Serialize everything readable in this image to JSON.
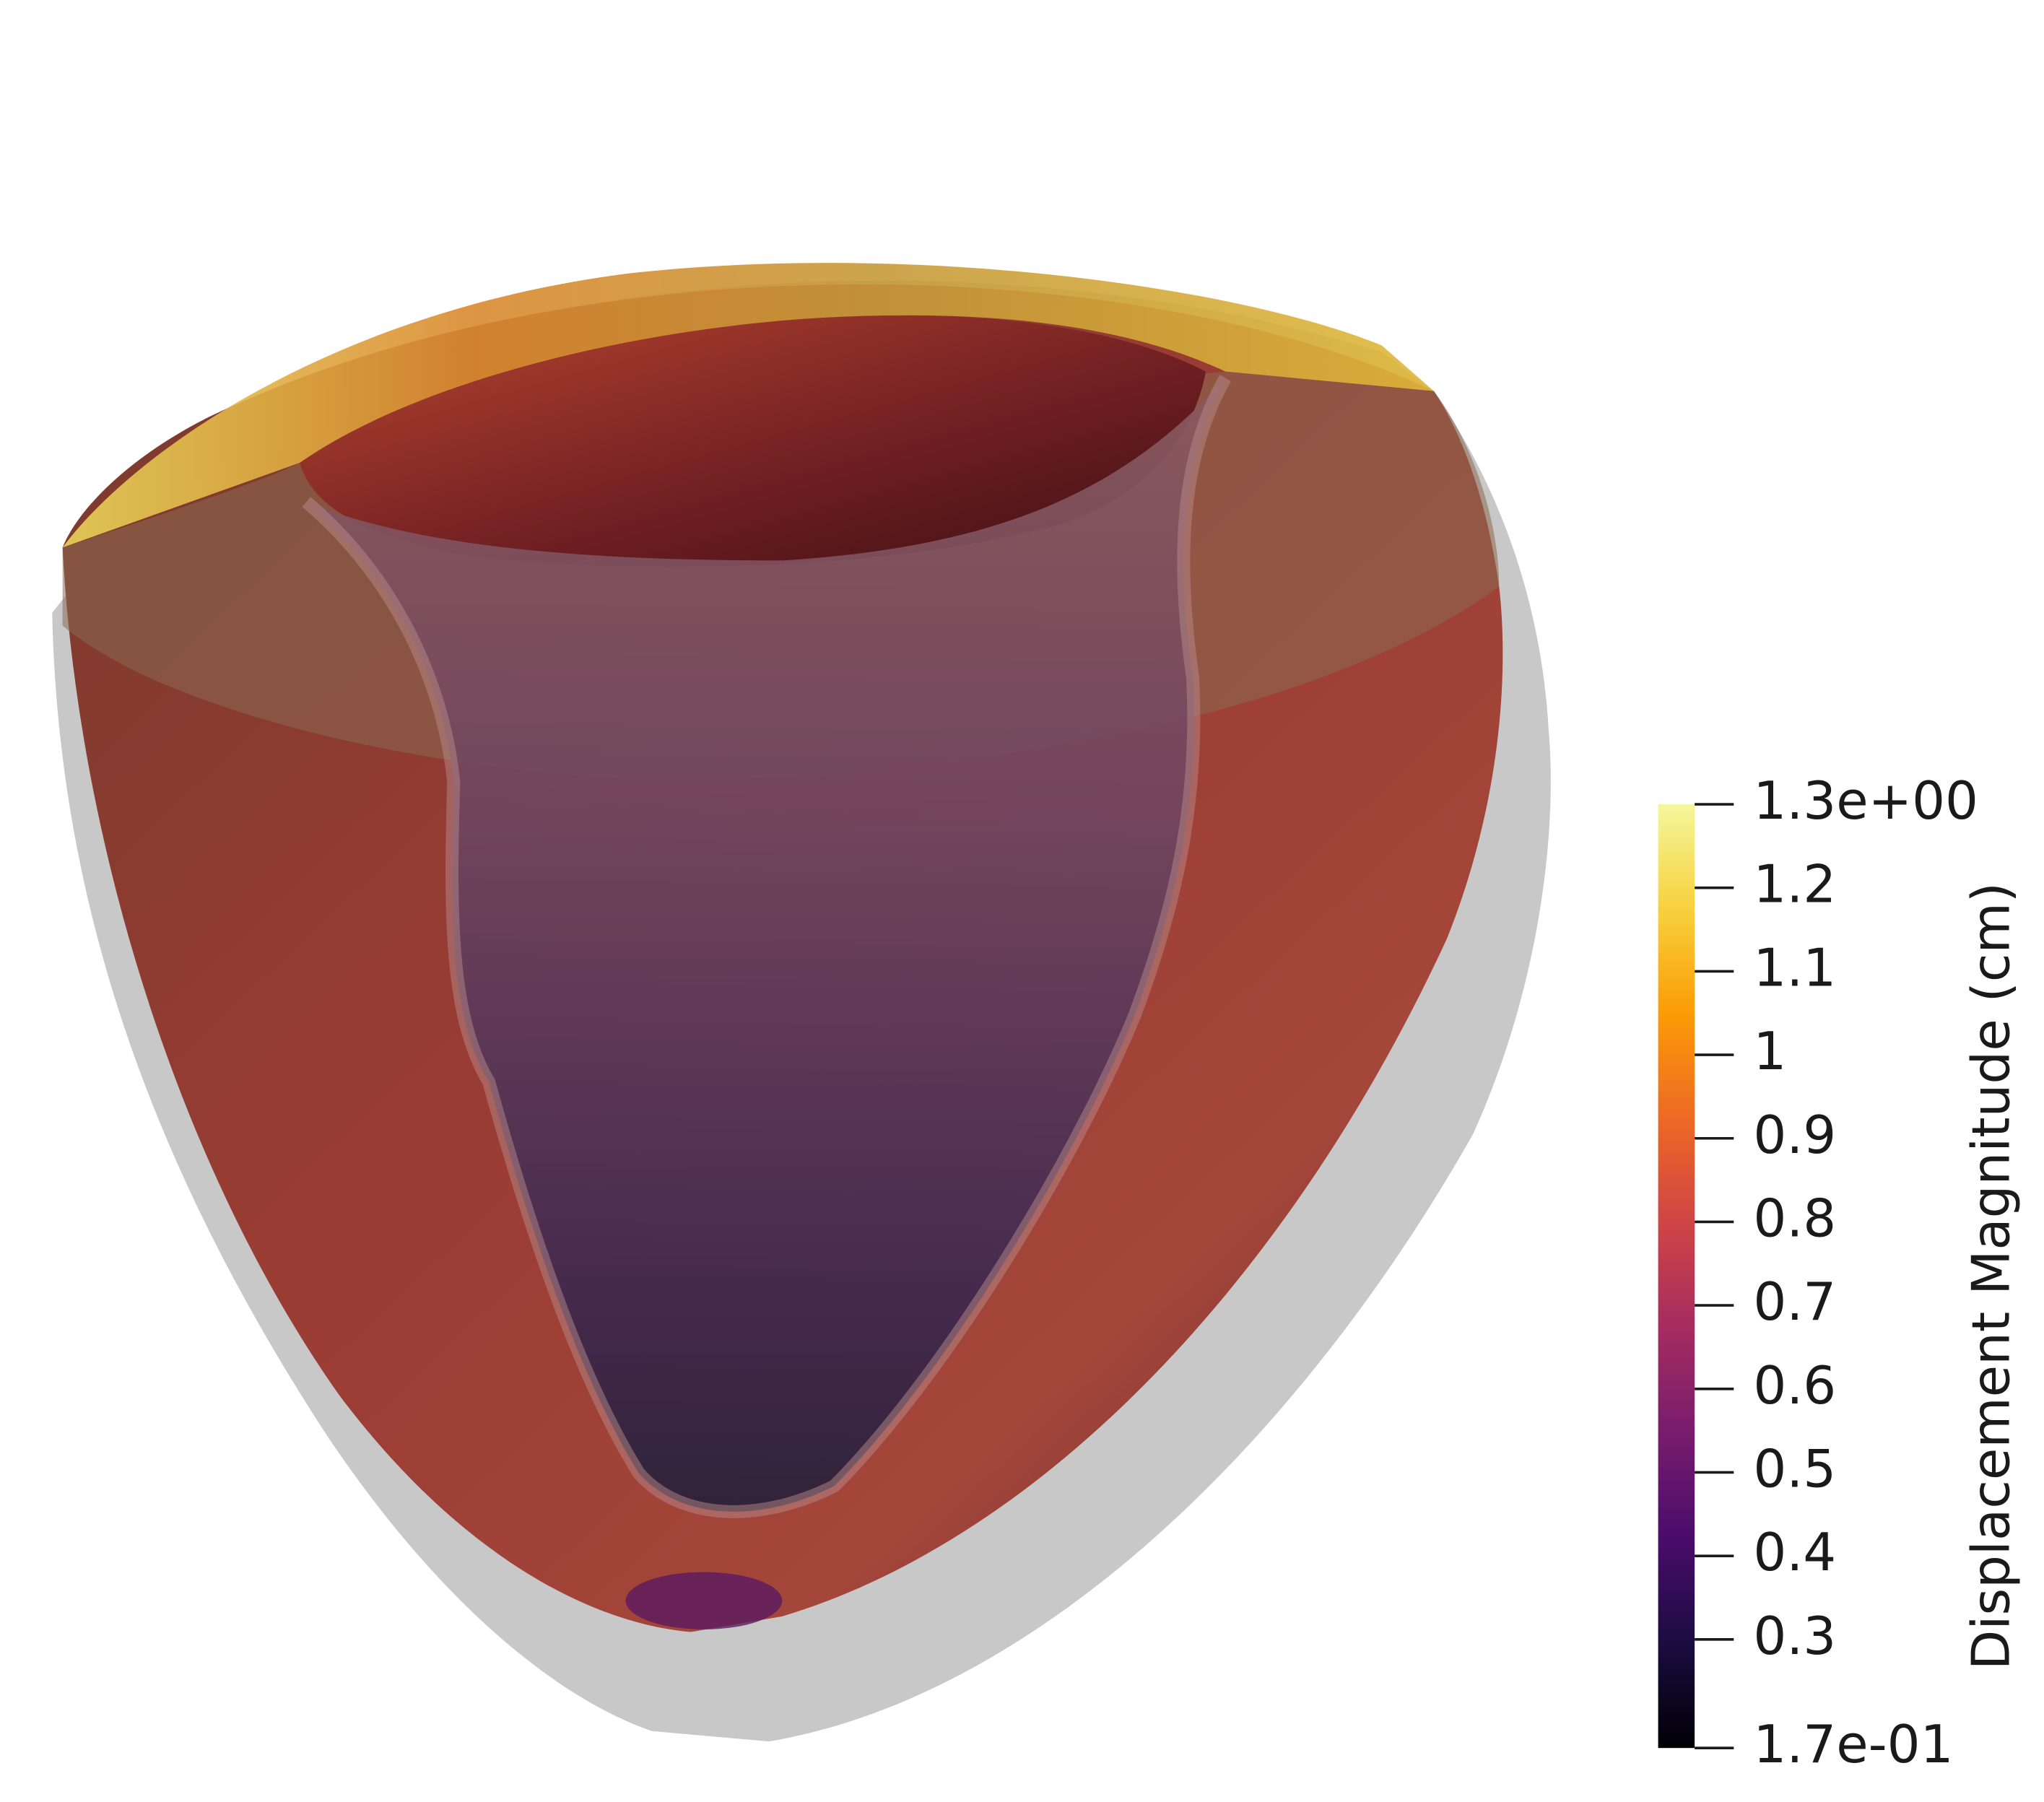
{
  "chart_data": {
    "type": "colormap",
    "colorbar_label": "Displacement Magnitude (cm)",
    "clim": [
      0.17,
      1.3
    ],
    "cticks": [
      {
        "value": 1.3,
        "label": "1.3e+00"
      },
      1.2,
      1.1,
      1,
      0.9,
      0.8,
      0.7,
      0.6,
      0.5,
      0.4,
      0.3,
      {
        "value": 0.17,
        "label": "1.7e-01"
      }
    ],
    "colormap": [
      "#000004",
      "#1b0c41",
      "#4a0c6b",
      "#781c6d",
      "#a52c60",
      "#cf4446",
      "#ed6925",
      "#fb9b06",
      "#f7d13d",
      "#f4f79c"
    ]
  }
}
